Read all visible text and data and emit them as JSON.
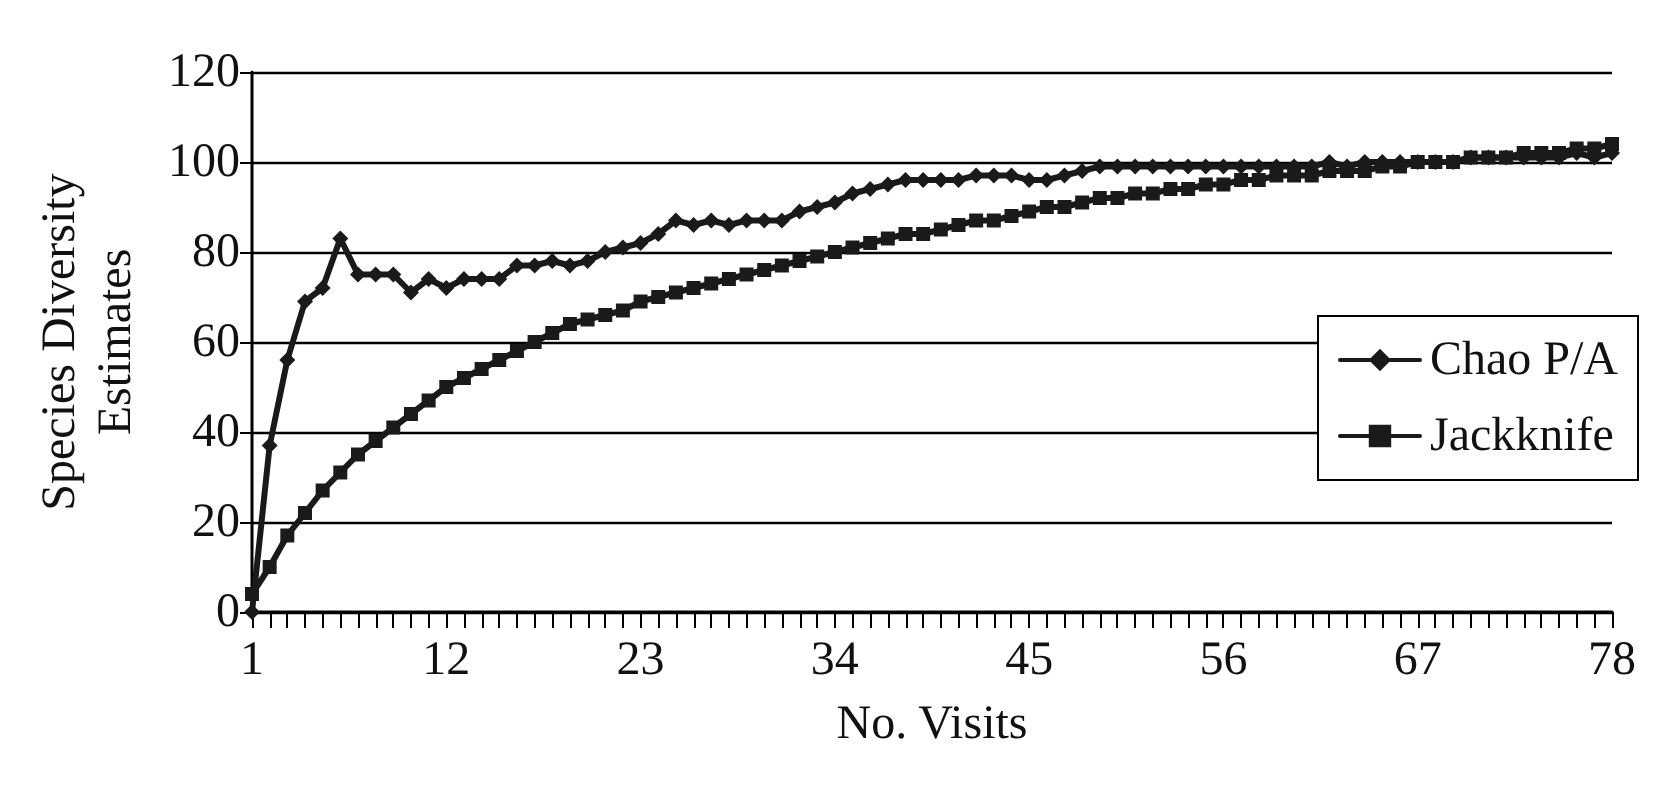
{
  "chart_data": {
    "type": "line",
    "xlabel": "No. Visits",
    "ylabel": "Species Diversity\nEstimates",
    "categories": [
      "1",
      null,
      null,
      null,
      null,
      null,
      null,
      null,
      null,
      null,
      null,
      "12",
      null,
      null,
      null,
      null,
      null,
      null,
      null,
      null,
      null,
      null,
      "23",
      null,
      null,
      null,
      null,
      null,
      null,
      null,
      null,
      null,
      null,
      "34",
      null,
      null,
      null,
      null,
      null,
      null,
      null,
      null,
      null,
      null,
      "45",
      null,
      null,
      null,
      null,
      null,
      null,
      null,
      null,
      null,
      null,
      "56",
      null,
      null,
      null,
      null,
      null,
      null,
      null,
      null,
      null,
      null,
      "67",
      null,
      null,
      null,
      null,
      null,
      null,
      null,
      null,
      null,
      null,
      "78"
    ],
    "series": [
      {
        "name": "Chao P/A",
        "color": "#1a1a1a",
        "marker": "diamond",
        "values": [
          0,
          37,
          56,
          69,
          72,
          83,
          75,
          75,
          75,
          71,
          74,
          72,
          74,
          74,
          74,
          77,
          77,
          78,
          77,
          78,
          80,
          81,
          82,
          84,
          87,
          86,
          87,
          86,
          87,
          87,
          87,
          89,
          90,
          91,
          93,
          94,
          95,
          96,
          96,
          96,
          96,
          97,
          97,
          97,
          96,
          96,
          97,
          98,
          99,
          99,
          99,
          99,
          99,
          99,
          99,
          99,
          99,
          99,
          99,
          99,
          99,
          100,
          99,
          100,
          100,
          100,
          100,
          100,
          100,
          101,
          101,
          101,
          101,
          101,
          101,
          102,
          101,
          102
        ]
      },
      {
        "name": "Jackknife",
        "color": "#1a1a1a",
        "marker": "square",
        "values": [
          4,
          10,
          17,
          22,
          27,
          31,
          35,
          38,
          41,
          44,
          47,
          50,
          52,
          54,
          56,
          58,
          60,
          62,
          64,
          65,
          66,
          67,
          69,
          70,
          71,
          72,
          73,
          74,
          75,
          76,
          77,
          78,
          79,
          80,
          81,
          82,
          83,
          84,
          84,
          85,
          86,
          87,
          87,
          88,
          89,
          90,
          90,
          91,
          92,
          92,
          93,
          93,
          94,
          94,
          95,
          95,
          96,
          96,
          97,
          97,
          97,
          98,
          98,
          98,
          99,
          99,
          100,
          100,
          100,
          101,
          101,
          101,
          102,
          102,
          102,
          103,
          103,
          104
        ]
      }
    ],
    "ylim": [
      0,
      120
    ],
    "yticks": [
      0,
      20,
      40,
      60,
      80,
      100,
      120
    ],
    "grid": "y",
    "legend": "right",
    "line_style": "solid"
  }
}
